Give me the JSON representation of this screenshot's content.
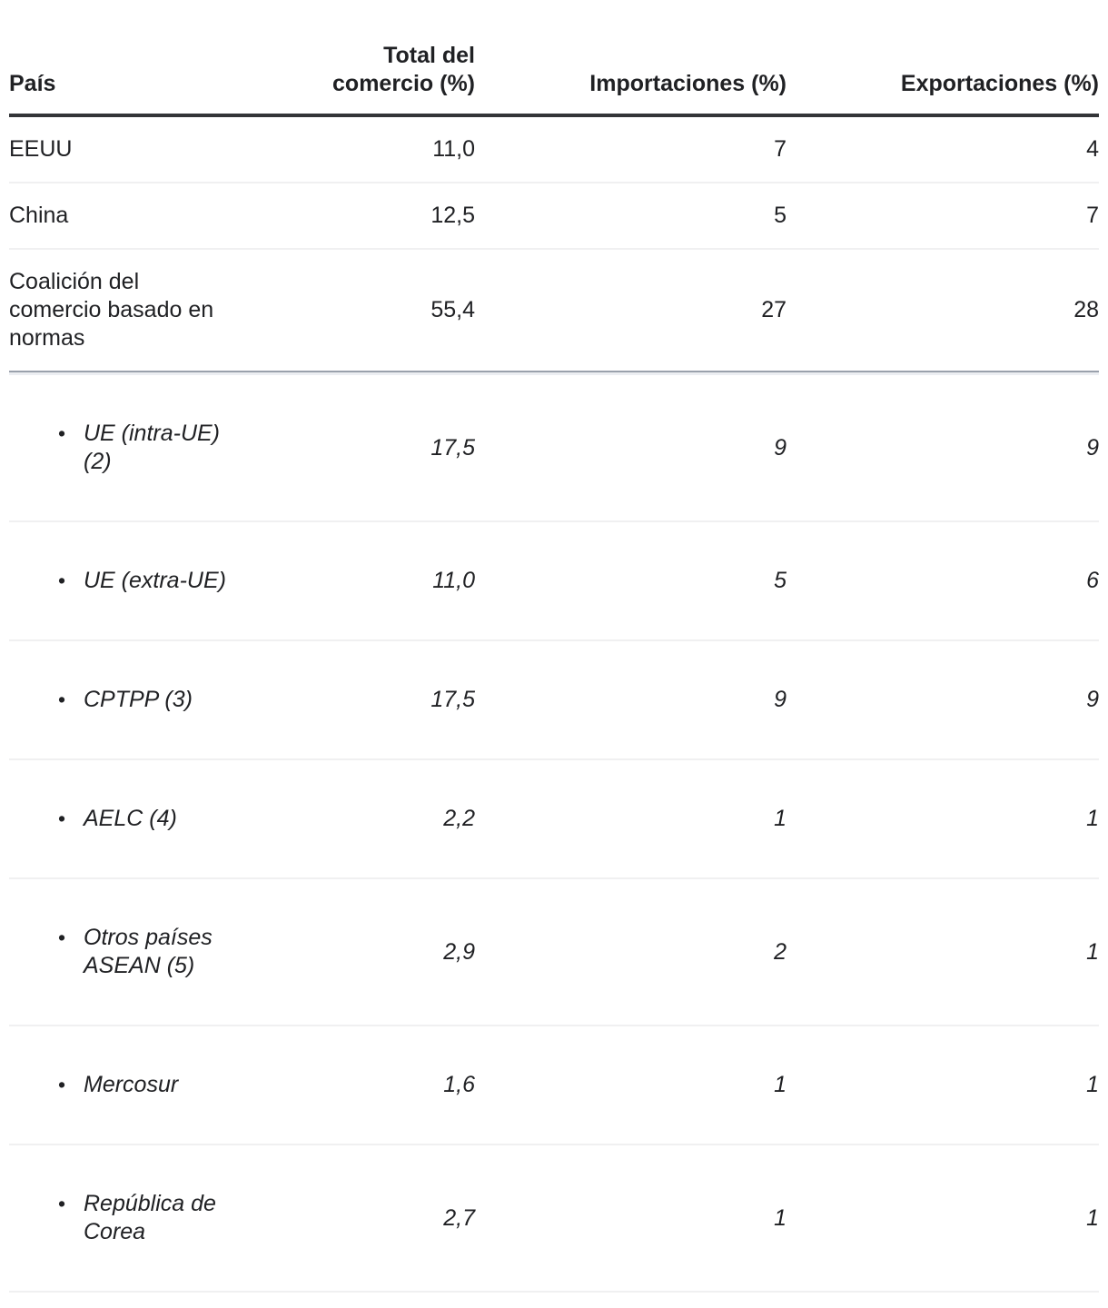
{
  "table": {
    "columns": [
      "País",
      "Total del comercio (%)",
      "Importaciones (%)",
      "Exportaciones (%)"
    ],
    "bullet_glyph": "•",
    "rows": [
      {
        "country": "EEUU",
        "total": "11,0",
        "imports": "7",
        "exports": "4"
      },
      {
        "country": "China",
        "total": "12,5",
        "imports": "5",
        "exports": "7"
      },
      {
        "country": "Coalición del comercio basado en normas",
        "total": "55,4",
        "imports": "27",
        "exports": "28"
      },
      {
        "country": "UE (intra-UE) (2)",
        "total": "17,5",
        "imports": "9",
        "exports": "9"
      },
      {
        "country": "UE (extra-UE)",
        "total": "11,0",
        "imports": "5",
        "exports": "6"
      },
      {
        "country": "CPTPP (3)",
        "total": "17,5",
        "imports": "9",
        "exports": "9"
      },
      {
        "country": "AELC (4)",
        "total": "2,2",
        "imports": "1",
        "exports": "1"
      },
      {
        "country": "Otros países ASEAN (5)",
        "total": "2,9",
        "imports": "2",
        "exports": "1"
      },
      {
        "country": "Mercosur",
        "total": "1,6",
        "imports": "1",
        "exports": "1"
      },
      {
        "country": "República de Corea",
        "total": "2,7",
        "imports": "1",
        "exports": "1"
      }
    ],
    "colors": {
      "text": "#202124",
      "header_rule": "#333538",
      "row_separator": "#f0f0f1",
      "group_separator_dark": "#9aa1ac",
      "group_separator_light": "#eceef2"
    }
  },
  "chart_data": {
    "type": "table",
    "title": "",
    "columns": [
      "País",
      "Total del comercio (%)",
      "Importaciones (%)",
      "Exportaciones (%)"
    ],
    "rows": [
      {
        "pais": "EEUU",
        "total_comercio_pct": 11.0,
        "importaciones_pct": 7,
        "exportaciones_pct": 4,
        "is_sub_item": false
      },
      {
        "pais": "China",
        "total_comercio_pct": 12.5,
        "importaciones_pct": 5,
        "exportaciones_pct": 7,
        "is_sub_item": false
      },
      {
        "pais": "Coalición del comercio basado en normas",
        "total_comercio_pct": 55.4,
        "importaciones_pct": 27,
        "exportaciones_pct": 28,
        "is_sub_item": false
      },
      {
        "pais": "UE (intra-UE) (2)",
        "total_comercio_pct": 17.5,
        "importaciones_pct": 9,
        "exportaciones_pct": 9,
        "is_sub_item": true
      },
      {
        "pais": "UE (extra-UE)",
        "total_comercio_pct": 11.0,
        "importaciones_pct": 5,
        "exportaciones_pct": 6,
        "is_sub_item": true
      },
      {
        "pais": "CPTPP (3)",
        "total_comercio_pct": 17.5,
        "importaciones_pct": 9,
        "exportaciones_pct": 9,
        "is_sub_item": true
      },
      {
        "pais": "AELC (4)",
        "total_comercio_pct": 2.2,
        "importaciones_pct": 1,
        "exportaciones_pct": 1,
        "is_sub_item": true
      },
      {
        "pais": "Otros países ASEAN (5)",
        "total_comercio_pct": 2.9,
        "importaciones_pct": 2,
        "exportaciones_pct": 1,
        "is_sub_item": true
      },
      {
        "pais": "Mercosur",
        "total_comercio_pct": 1.6,
        "importaciones_pct": 1,
        "exportaciones_pct": 1,
        "is_sub_item": true
      },
      {
        "pais": "República de Corea",
        "total_comercio_pct": 2.7,
        "importaciones_pct": 1,
        "exportaciones_pct": 1,
        "is_sub_item": true
      }
    ],
    "notes": "Decimal comma formatting as displayed; sub-items are italic bulleted members of the rules-based trade coalition."
  }
}
